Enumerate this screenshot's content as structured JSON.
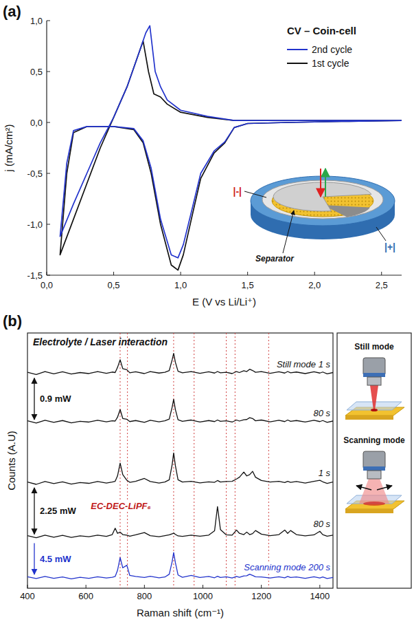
{
  "chart_data": [
    {
      "type": "line",
      "label": "(a)",
      "title": "CV – Coin-cell",
      "x_label": "E (V vs Li/Li⁺)",
      "y_label": "j (mA/cm²)",
      "xlim": [
        0,
        2.65
      ],
      "ylim": [
        -1.5,
        1.0
      ],
      "xticks": [
        {
          "value": 0,
          "label": "0,0"
        },
        {
          "value": 0.5,
          "label": "0,5"
        },
        {
          "value": 1,
          "label": "1,0"
        },
        {
          "value": 1.5,
          "label": "1,5"
        },
        {
          "value": 2,
          "label": "2,0"
        },
        {
          "value": 2.5,
          "label": "2,5"
        }
      ],
      "yticks": [
        {
          "value": -1.5,
          "label": "-1,5"
        },
        {
          "value": -1,
          "label": "-1,0"
        },
        {
          "value": -0.5,
          "label": "-0,5"
        },
        {
          "value": 0,
          "label": "0,0"
        },
        {
          "value": 0.5,
          "label": "0,5"
        },
        {
          "value": 1,
          "label": "1,0"
        }
      ],
      "grid": false,
      "legend": "upper right",
      "series": [
        {
          "name": "2nd cycle",
          "color": "#2233cc",
          "x": [
            2.65,
            2.2,
            1.8,
            1.5,
            1.4,
            1.33,
            1.25,
            1.15,
            1.08,
            1.02,
            0.98,
            0.93,
            0.85,
            0.78,
            0.72,
            0.65,
            0.5,
            0.3,
            0.2,
            0.15,
            0.1,
            0.2,
            0.3,
            0.4,
            0.5,
            0.6,
            0.68,
            0.74,
            0.77,
            0.81,
            0.85,
            0.9,
            1.0,
            1.2,
            1.4,
            1.8,
            2.65
          ],
          "values": [
            0.02,
            0.01,
            0.0,
            -0.01,
            -0.05,
            -0.19,
            -0.28,
            -0.5,
            -0.88,
            -1.2,
            -1.33,
            -1.3,
            -0.95,
            -0.45,
            -0.18,
            -0.06,
            -0.04,
            -0.04,
            -0.08,
            -0.4,
            -1.12,
            -0.8,
            -0.5,
            -0.2,
            0.05,
            0.35,
            0.65,
            0.88,
            0.95,
            0.5,
            0.35,
            0.22,
            0.12,
            0.06,
            0.02,
            0.02,
            0.02
          ]
        },
        {
          "name": "1st cycle",
          "color": "#111111",
          "x": [
            2.65,
            2.2,
            1.8,
            1.5,
            1.4,
            1.33,
            1.25,
            1.15,
            1.08,
            1.02,
            0.98,
            0.93,
            0.85,
            0.78,
            0.72,
            0.65,
            0.5,
            0.3,
            0.2,
            0.15,
            0.1,
            0.2,
            0.3,
            0.4,
            0.5,
            0.6,
            0.68,
            0.72,
            0.76,
            0.8,
            0.85,
            0.9,
            1.0,
            1.2,
            1.4,
            1.8,
            2.65
          ],
          "values": [
            0.02,
            0.01,
            0.0,
            -0.01,
            -0.05,
            -0.2,
            -0.3,
            -0.55,
            -0.95,
            -1.3,
            -1.45,
            -1.4,
            -1.0,
            -0.5,
            -0.2,
            -0.07,
            -0.04,
            -0.04,
            -0.1,
            -0.5,
            -1.3,
            -0.95,
            -0.6,
            -0.25,
            0.05,
            0.35,
            0.65,
            0.8,
            0.5,
            0.28,
            0.25,
            0.18,
            0.1,
            0.05,
            0.02,
            0.02,
            0.02
          ]
        }
      ],
      "annotations": [
        "|-|",
        "|+|",
        "Separator"
      ]
    },
    {
      "type": "line",
      "label": "(b)",
      "title": "Electrolyte / Laser interaction",
      "x_label": "Raman shift (cm⁻¹)",
      "y_label": "Counts (A.U)",
      "xlim": [
        400,
        1445
      ],
      "ylim": [
        0,
        100
      ],
      "xticks": [
        400,
        600,
        800,
        1000,
        1200,
        1400
      ],
      "tick_labels": "x",
      "grid": false,
      "x": [
        400,
        430,
        460,
        490,
        520,
        550,
        580,
        610,
        640,
        670,
        690,
        700,
        708,
        717,
        726,
        740,
        750,
        770,
        800,
        820,
        850,
        870,
        885,
        895,
        900,
        906,
        915,
        930,
        960,
        990,
        1020,
        1040,
        1050,
        1060,
        1080,
        1100,
        1115,
        1125,
        1140,
        1150,
        1160,
        1170,
        1180,
        1200,
        1230,
        1260,
        1280,
        1290,
        1300,
        1320,
        1350,
        1380,
        1400,
        1410,
        1425,
        1445
      ],
      "series": [
        {
          "name": "Still mode 1 s",
          "color": "#111111",
          "values": [
            84.6,
            83.7,
            84.9,
            84.0,
            84.8,
            83.9,
            84.5,
            84.1,
            84.9,
            84.2,
            84.7,
            84.5,
            86.5,
            89.5,
            86.0,
            85.6,
            84.4,
            84.8,
            84.1,
            84.9,
            84.3,
            84.6,
            85.3,
            89.5,
            92.0,
            88.5,
            85.0,
            84.4,
            84.9,
            84.2,
            84.8,
            84.3,
            84.9,
            84.4,
            84.6,
            84.1,
            84.9,
            84.5,
            85.2,
            84.9,
            85.8,
            85.3,
            84.6,
            84.9,
            84.2,
            84.8,
            84.3,
            84.9,
            84.4,
            84.7,
            84.1,
            84.8,
            84.3,
            84.7,
            84.0,
            84.5
          ]
        },
        {
          "name": "80 s",
          "color": "#111111",
          "values": [
            65.6,
            64.7,
            65.8,
            65.0,
            65.7,
            64.8,
            65.4,
            65.1,
            65.8,
            65.2,
            65.6,
            65.5,
            67.0,
            70.0,
            66.5,
            66.2,
            65.3,
            65.7,
            65.0,
            65.8,
            65.2,
            65.6,
            66.3,
            71.0,
            74.0,
            70.0,
            66.0,
            65.4,
            65.9,
            65.1,
            65.7,
            65.3,
            65.9,
            65.4,
            65.6,
            65.1,
            65.9,
            65.5,
            66.0,
            66.1,
            66.8,
            66.5,
            65.6,
            65.9,
            65.2,
            65.8,
            65.3,
            65.9,
            65.4,
            65.7,
            65.1,
            65.8,
            65.3,
            65.7,
            65.0,
            65.5
          ]
        },
        {
          "name": "1 s",
          "color": "#111111",
          "values": [
            41.6,
            40.7,
            41.8,
            41.0,
            41.7,
            40.8,
            41.4,
            41.1,
            41.8,
            41.2,
            41.6,
            41.9,
            44.0,
            49.0,
            44.5,
            42.3,
            41.5,
            41.9,
            43.0,
            41.8,
            41.2,
            41.6,
            42.5,
            48.5,
            53.0,
            48.0,
            42.5,
            41.6,
            41.9,
            41.3,
            41.7,
            41.5,
            42.2,
            41.6,
            41.8,
            41.9,
            42.8,
            43.5,
            45.5,
            44.0,
            44.5,
            45.8,
            43.5,
            42.2,
            41.6,
            41.9,
            41.4,
            41.9,
            41.5,
            41.8,
            41.2,
            41.9,
            42.3,
            41.7,
            41.1,
            41.6
          ]
        },
        {
          "name": "80 s",
          "color": "#111111",
          "values": [
            20.6,
            19.8,
            20.8,
            20.0,
            20.7,
            19.9,
            20.5,
            20.2,
            20.8,
            20.3,
            21.0,
            23.5,
            21.5,
            22.0,
            21.0,
            20.8,
            20.4,
            20.9,
            21.8,
            20.6,
            20.2,
            20.6,
            20.9,
            21.3,
            21.6,
            21.1,
            20.5,
            20.3,
            20.8,
            20.4,
            20.8,
            22.5,
            32.0,
            23.0,
            20.9,
            20.8,
            22.8,
            21.5,
            21.0,
            22.0,
            21.0,
            21.4,
            22.6,
            21.2,
            20.6,
            21.0,
            22.8,
            21.5,
            22.6,
            21.0,
            20.5,
            20.9,
            22.3,
            21.0,
            20.4,
            20.8
          ]
        },
        {
          "name": "Scanning mode 200 s",
          "color": "#2233cc",
          "values": [
            4.5,
            3.8,
            4.6,
            3.9,
            4.4,
            3.7,
            4.3,
            3.9,
            4.5,
            4.0,
            4.3,
            4.6,
            7.0,
            12.0,
            8.0,
            9.0,
            5.0,
            4.6,
            4.2,
            4.7,
            4.1,
            4.4,
            5.5,
            10.5,
            14.0,
            10.0,
            5.2,
            4.3,
            5.0,
            4.2,
            4.6,
            4.1,
            4.7,
            4.2,
            4.5,
            4.0,
            4.6,
            4.3,
            4.8,
            4.9,
            5.5,
            5.0,
            4.5,
            4.4,
            4.0,
            4.5,
            4.1,
            4.6,
            4.2,
            4.4,
            3.9,
            4.5,
            4.0,
            4.4,
            3.8,
            4.2
          ]
        }
      ],
      "reference_lines": [
        717,
        742,
        900,
        970,
        1080,
        1110,
        1225
      ],
      "power_labels": [
        "0.9 mW",
        "2.25 mW",
        "4.5 mW"
      ],
      "annotations": [
        "EC-DEC-LiPF₆"
      ],
      "mode_panels": [
        "Still mode",
        "Scanning mode"
      ]
    }
  ]
}
